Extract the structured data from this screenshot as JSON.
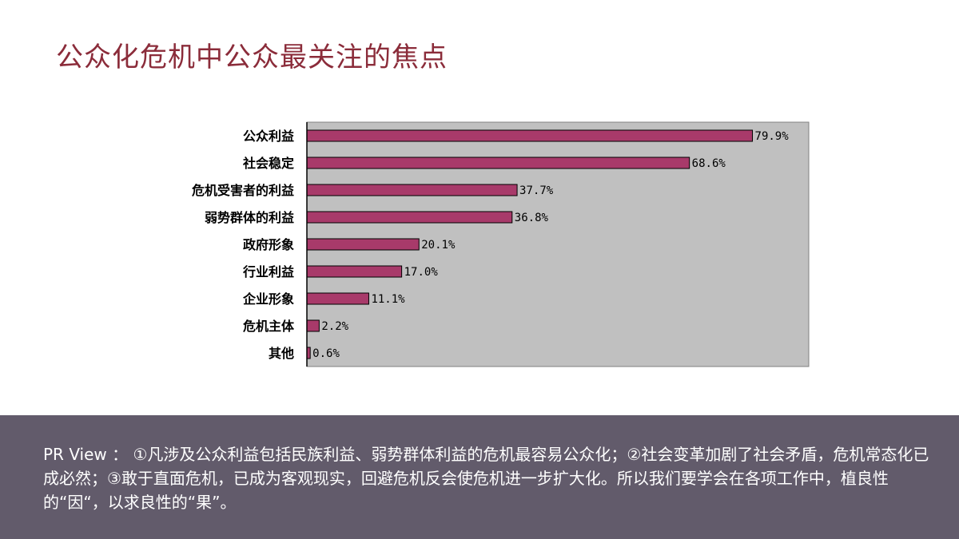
{
  "slide": {
    "title": "公众化危机中公众最关注的焦点",
    "footer_text": "PR View ： ①凡涉及公众利益包括民族利益、弱势群体利益的危机最容易公众化；②社会变革加剧了社会矛盾，危机常态化已成必然；③敢于直面危机，已成为客观现实，回避危机反会使危机进一步扩大化。所以我们要学会在各项工作中，植良性的“因“，以求良性的“果”。"
  },
  "colors": {
    "title": "#8b2c3a",
    "bar_fill": "#a83a6a",
    "plot_bg": "#c0c0c0",
    "footer_bg": "#625b6b"
  },
  "chart_data": {
    "type": "bar",
    "orientation": "horizontal",
    "categories": [
      "公众利益",
      "社会稳定",
      "危机受害者的利益",
      "弱势群体的利益",
      "政府形象",
      "行业利益",
      "企业形象",
      "危机主体",
      "其他"
    ],
    "values": [
      79.9,
      68.6,
      37.7,
      36.8,
      20.1,
      17.0,
      11.1,
      2.2,
      0.6
    ],
    "value_labels": [
      "79.9%",
      "68.6%",
      "37.7%",
      "36.8%",
      "20.1%",
      "17.0%",
      "11.1%",
      "2.2%",
      "0.6%"
    ],
    "xlim": [
      0,
      90
    ],
    "grid": false,
    "legend": "none"
  }
}
